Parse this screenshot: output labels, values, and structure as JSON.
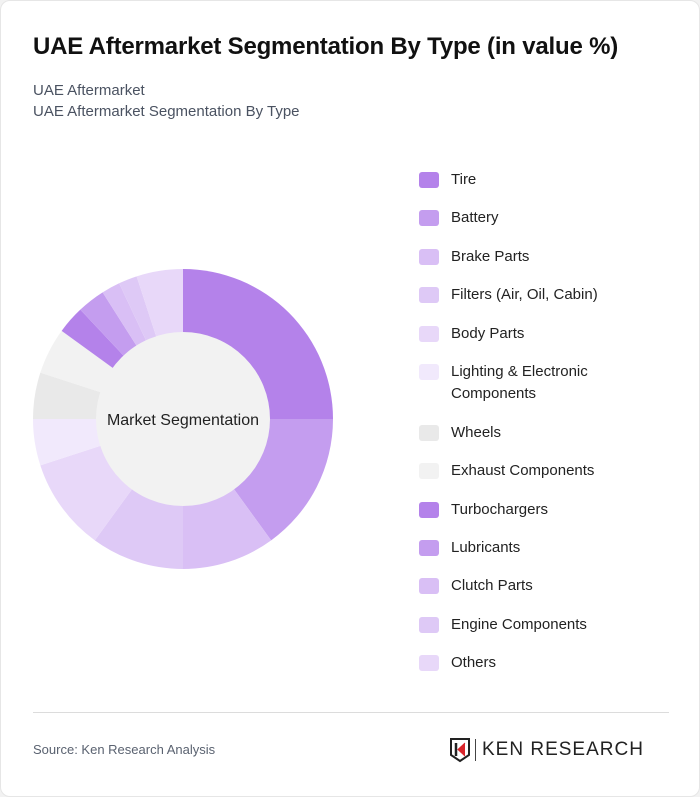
{
  "header": {
    "title": "UAE Aftermarket Segmentation By Type (in value %)",
    "subtitle1": "UAE Aftermarket",
    "subtitle2": "UAE Aftermarket Segmentation By Type"
  },
  "chart": {
    "center_label": "Market Segmentation"
  },
  "chart_data": {
    "type": "pie",
    "title": "UAE Aftermarket Segmentation By Type (in value %)",
    "center_label": "Market Segmentation",
    "categories": [
      "Tire",
      "Battery",
      "Brake Parts",
      "Filters (Air, Oil, Cabin)",
      "Body Parts",
      "Lighting & Electronic Components",
      "Wheels",
      "Exhaust Components",
      "Turbochargers",
      "Lubricants",
      "Clutch Parts",
      "Engine Components",
      "Others"
    ],
    "values": [
      25,
      15,
      10,
      10,
      10,
      5,
      5,
      5,
      3,
      3,
      2,
      2,
      5
    ],
    "colors": [
      "#b482ea",
      "#c49def",
      "#d9bff5",
      "#dec9f6",
      "#e8d8f9",
      "#f1e9fc",
      "#e9e9e9",
      "#f2f2f2",
      "#b482ea",
      "#c49def",
      "#d9bff5",
      "#dec9f6",
      "#e8d8f9"
    ],
    "legend_position": "right"
  },
  "legend": [
    {
      "label": "Tire",
      "color": "#b482ea"
    },
    {
      "label": "Battery",
      "color": "#c49def"
    },
    {
      "label": "Brake Parts",
      "color": "#d9bff5"
    },
    {
      "label": "Filters (Air, Oil, Cabin)",
      "color": "#dec9f6"
    },
    {
      "label": "Body Parts",
      "color": "#e8d8f9"
    },
    {
      "label": "Lighting & Electronic Components",
      "color": "#f1e9fc"
    },
    {
      "label": "Wheels",
      "color": "#e9e9e9"
    },
    {
      "label": "Exhaust Components",
      "color": "#f2f2f2"
    },
    {
      "label": "Turbochargers",
      "color": "#b482ea"
    },
    {
      "label": "Lubricants",
      "color": "#c49def"
    },
    {
      "label": "Clutch Parts",
      "color": "#d9bff5"
    },
    {
      "label": "Engine Components",
      "color": "#dec9f6"
    },
    {
      "label": "Others",
      "color": "#e8d8f9"
    }
  ],
  "footer": {
    "source": "Source: Ken Research Analysis",
    "logo_text": "KEN RESEARCH"
  }
}
